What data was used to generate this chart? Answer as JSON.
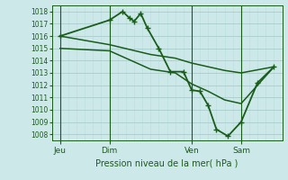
{
  "title": "Pression niveau de la mer( hPa )",
  "bg_color": "#cce8e8",
  "grid_color_major": "#aacccc",
  "grid_color_minor": "#bbdddd",
  "line_color": "#1a5c1a",
  "ylim": [
    1007.5,
    1018.5
  ],
  "yticks": [
    1008,
    1009,
    1010,
    1011,
    1012,
    1013,
    1014,
    1015,
    1016,
    1017,
    1018
  ],
  "xlim": [
    0,
    14
  ],
  "xtick_labels": [
    "Jeu",
    "Dim",
    "Ven",
    "Sam"
  ],
  "xtick_positions": [
    0.5,
    3.5,
    8.5,
    11.5
  ],
  "vline_positions": [
    0.5,
    3.5,
    8.5,
    11.5
  ],
  "series": [
    {
      "x": [
        0.5,
        3.5,
        4.3,
        4.7,
        5.0,
        5.4,
        5.8,
        6.5,
        7.2,
        8.0,
        8.5,
        9.0,
        9.5,
        10.0,
        10.7,
        11.5,
        12.5,
        13.5
      ],
      "y": [
        1016.0,
        1017.3,
        1018.0,
        1017.5,
        1017.2,
        1017.85,
        1016.65,
        1015.0,
        1013.1,
        1013.1,
        1011.6,
        1011.5,
        1010.35,
        1008.4,
        1007.85,
        1009.0,
        1012.2,
        1013.5
      ],
      "marker": "+",
      "lw": 1.3
    },
    {
      "x": [
        0.5,
        3.5,
        6.0,
        7.5,
        8.5,
        9.5,
        10.5,
        11.5,
        13.5
      ],
      "y": [
        1015.0,
        1014.8,
        1013.3,
        1013.0,
        1012.1,
        1011.5,
        1010.8,
        1010.5,
        1013.5
      ],
      "marker": null,
      "lw": 1.1
    },
    {
      "x": [
        0.5,
        3.5,
        6.0,
        7.5,
        8.5,
        9.5,
        10.5,
        11.5,
        13.5
      ],
      "y": [
        1016.0,
        1015.3,
        1014.5,
        1014.2,
        1013.8,
        1013.5,
        1013.2,
        1013.0,
        1013.5
      ],
      "marker": null,
      "lw": 1.1
    }
  ]
}
